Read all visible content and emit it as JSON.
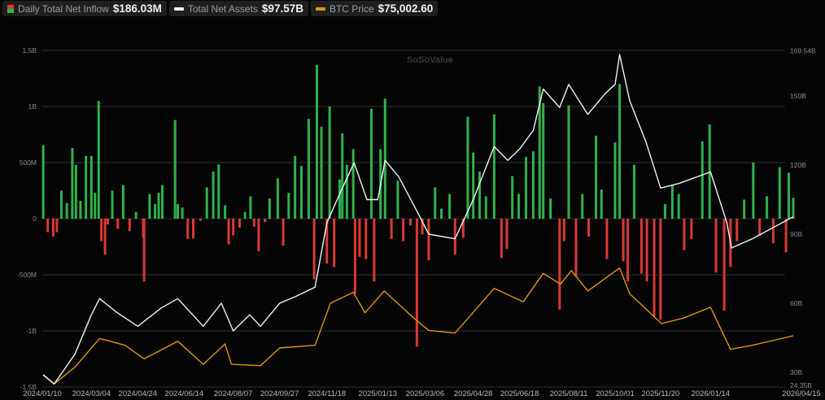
{
  "legend": {
    "flow": {
      "label": "Daily Total Net Inflow",
      "value": "$186.03M"
    },
    "assets": {
      "label": "Total Net Assets",
      "value": "$97.57B"
    },
    "btc": {
      "label": "BTC Price",
      "value": "$75,002.60"
    }
  },
  "watermark": "SoSoValue",
  "colors": {
    "inflow": "#2fb14a",
    "outflow": "#d93a32",
    "assets": "#f2f2f2",
    "btc": "#e0960c",
    "grid": "#2e2e2e",
    "background": "#050505"
  },
  "chart_data": {
    "type": "bar+line",
    "title": "",
    "grid": true,
    "legend_position": "top-left",
    "x_ticks": [
      "2024/01/10",
      "2024/03/04",
      "2024/04/24",
      "2024/06/14",
      "2024/08/07",
      "2024/09/27",
      "2024/11/18",
      "2025/01/13",
      "2025/03/06",
      "2025/04/28",
      "2025/06/18",
      "2025/08/11",
      "2025/10/01",
      "2025/11/20",
      "2026/01/14",
      "2026/04/15"
    ],
    "left_axis": {
      "ticks": [
        "1.5B",
        "1B",
        "500M",
        "0",
        "-500M",
        "-1B",
        "-1.5B"
      ],
      "range_millions": [
        -1500,
        1500
      ]
    },
    "right_axis": {
      "ticks": [
        "169.54B",
        "150B",
        "120B",
        "90B",
        "60B",
        "30B",
        "24.35B"
      ],
      "range_billions": [
        24.35,
        169.54
      ]
    },
    "series": [
      {
        "name": "Daily Total Net Inflow",
        "kind": "bar",
        "axis": "left",
        "unit": "M USD",
        "points": [
          [
            "2024/01/11",
            655
          ],
          [
            "2024/01/16",
            -120
          ],
          [
            "2024/01/22",
            -160
          ],
          [
            "2024/01/26",
            -120
          ],
          [
            "2024/01/31",
            250
          ],
          [
            "2024/02/06",
            140
          ],
          [
            "2024/02/12",
            630
          ],
          [
            "2024/02/16",
            480
          ],
          [
            "2024/02/21",
            160
          ],
          [
            "2024/02/27",
            560
          ],
          [
            "2024/03/04",
            560
          ],
          [
            "2024/03/08",
            230
          ],
          [
            "2024/03/12",
            1050
          ],
          [
            "2024/03/15",
            -200
          ],
          [
            "2024/03/19",
            -320
          ],
          [
            "2024/03/22",
            -50
          ],
          [
            "2024/03/27",
            250
          ],
          [
            "2024/04/02",
            -90
          ],
          [
            "2024/04/08",
            300
          ],
          [
            "2024/04/15",
            -110
          ],
          [
            "2024/04/22",
            60
          ],
          [
            "2024/04/30",
            -170
          ],
          [
            "2024/05/01",
            -560
          ],
          [
            "2024/05/07",
            220
          ],
          [
            "2024/05/13",
            130
          ],
          [
            "2024/05/17",
            230
          ],
          [
            "2024/05/21",
            300
          ],
          [
            "2024/06/04",
            880
          ],
          [
            "2024/06/07",
            130
          ],
          [
            "2024/06/12",
            100
          ],
          [
            "2024/06/18",
            -180
          ],
          [
            "2024/06/24",
            -175
          ],
          [
            "2024/07/02",
            -20
          ],
          [
            "2024/07/09",
            280
          ],
          [
            "2024/07/16",
            420
          ],
          [
            "2024/07/22",
            485
          ],
          [
            "2024/07/29",
            120
          ],
          [
            "2024/08/02",
            -230
          ],
          [
            "2024/08/07",
            -150
          ],
          [
            "2024/08/14",
            -80
          ],
          [
            "2024/08/20",
            60
          ],
          [
            "2024/08/26",
            200
          ],
          [
            "2024/08/30",
            -70
          ],
          [
            "2024/09/04",
            -290
          ],
          [
            "2024/09/11",
            -30
          ],
          [
            "2024/09/16",
            180
          ],
          [
            "2024/09/25",
            360
          ],
          [
            "2024/10/01",
            -240
          ],
          [
            "2024/10/07",
            230
          ],
          [
            "2024/10/14",
            560
          ],
          [
            "2024/10/21",
            470
          ],
          [
            "2024/10/29",
            890
          ],
          [
            "2024/11/04",
            -540
          ],
          [
            "2024/11/07",
            1370
          ],
          [
            "2024/11/12",
            820
          ],
          [
            "2024/11/18",
            -400
          ],
          [
            "2024/11/21",
            1000
          ],
          [
            "2024/11/26",
            -430
          ],
          [
            "2024/12/02",
            350
          ],
          [
            "2024/12/05",
            760
          ],
          [
            "2024/12/10",
            480
          ],
          [
            "2024/12/17",
            620
          ],
          [
            "2024/12/19",
            -670
          ],
          [
            "2024/12/24",
            -340
          ],
          [
            "2024/12/31",
            -360
          ],
          [
            "2025/01/06",
            980
          ],
          [
            "2025/01/09",
            -560
          ],
          [
            "2025/01/16",
            620
          ],
          [
            "2025/01/21",
            1070
          ],
          [
            "2025/01/28",
            -180
          ],
          [
            "2025/02/04",
            340
          ],
          [
            "2025/02/10",
            -200
          ],
          [
            "2025/02/18",
            -60
          ],
          [
            "2025/02/25",
            -1140
          ],
          [
            "2025/03/03",
            -140
          ],
          [
            "2025/03/10",
            -370
          ],
          [
            "2025/03/17",
            280
          ],
          [
            "2025/03/24",
            90
          ],
          [
            "2025/04/02",
            220
          ],
          [
            "2025/04/08",
            -320
          ],
          [
            "2025/04/17",
            -170
          ],
          [
            "2025/04/22",
            910
          ],
          [
            "2025/04/28",
            590
          ],
          [
            "2025/05/05",
            420
          ],
          [
            "2025/05/12",
            200
          ],
          [
            "2025/05/21",
            930
          ],
          [
            "2025/05/29",
            -350
          ],
          [
            "2025/06/04",
            -270
          ],
          [
            "2025/06/10",
            380
          ],
          [
            "2025/06/17",
            220
          ],
          [
            "2025/06/25",
            550
          ],
          [
            "2025/07/03",
            600
          ],
          [
            "2025/07/10",
            1180
          ],
          [
            "2025/07/14",
            1030
          ],
          [
            "2025/07/22",
            180
          ],
          [
            "2025/08/01",
            -810
          ],
          [
            "2025/08/06",
            -200
          ],
          [
            "2025/08/11",
            1010
          ],
          [
            "2025/08/19",
            -520
          ],
          [
            "2025/08/26",
            220
          ],
          [
            "2025/09/02",
            -160
          ],
          [
            "2025/09/10",
            740
          ],
          [
            "2025/09/16",
            260
          ],
          [
            "2025/09/22",
            -360
          ],
          [
            "2025/10/01",
            680
          ],
          [
            "2025/10/06",
            1200
          ],
          [
            "2025/10/10",
            -380
          ],
          [
            "2025/10/15",
            -560
          ],
          [
            "2025/10/22",
            480
          ],
          [
            "2025/10/30",
            -490
          ],
          [
            "2025/11/05",
            -560
          ],
          [
            "2025/11/13",
            -870
          ],
          [
            "2025/11/20",
            -900
          ],
          [
            "2025/11/25",
            130
          ],
          [
            "2025/12/03",
            300
          ],
          [
            "2025/12/10",
            220
          ],
          [
            "2025/12/16",
            -280
          ],
          [
            "2025/12/24",
            -180
          ],
          [
            "2026/01/05",
            690
          ],
          [
            "2026/01/13",
            840
          ],
          [
            "2026/01/20",
            -480
          ],
          [
            "2026/01/29",
            -820
          ],
          [
            "2026/02/05",
            -430
          ],
          [
            "2026/02/12",
            -200
          ],
          [
            "2026/02/20",
            170
          ],
          [
            "2026/03/02",
            500
          ],
          [
            "2026/03/09",
            -150
          ],
          [
            "2026/03/17",
            200
          ],
          [
            "2026/03/24",
            -220
          ],
          [
            "2026/03/31",
            460
          ],
          [
            "2026/04/07",
            -300
          ],
          [
            "2026/04/10",
            410
          ],
          [
            "2026/04/15",
            186.03
          ]
        ]
      },
      {
        "name": "Total Net Assets",
        "kind": "line",
        "axis": "right",
        "unit": "B USD",
        "points": [
          [
            "2024/01/11",
            29
          ],
          [
            "2024/01/23",
            25
          ],
          [
            "2024/02/01",
            30
          ],
          [
            "2024/02/15",
            38
          ],
          [
            "2024/03/04",
            55
          ],
          [
            "2024/03/13",
            62
          ],
          [
            "2024/04/01",
            56
          ],
          [
            "2024/04/24",
            50
          ],
          [
            "2024/05/20",
            58
          ],
          [
            "2024/06/07",
            62
          ],
          [
            "2024/07/05",
            50
          ],
          [
            "2024/07/25",
            60
          ],
          [
            "2024/08/07",
            48
          ],
          [
            "2024/08/25",
            55
          ],
          [
            "2024/09/06",
            50
          ],
          [
            "2024/09/27",
            60
          ],
          [
            "2024/10/15",
            63
          ],
          [
            "2024/11/05",
            67
          ],
          [
            "2024/11/18",
            95
          ],
          [
            "2024/12/05",
            110
          ],
          [
            "2024/12/18",
            121
          ],
          [
            "2025/01/01",
            105
          ],
          [
            "2025/01/13",
            105
          ],
          [
            "2025/01/21",
            122
          ],
          [
            "2025/02/05",
            115
          ],
          [
            "2025/02/25",
            100
          ],
          [
            "2025/03/10",
            90
          ],
          [
            "2025/04/08",
            88
          ],
          [
            "2025/04/28",
            105
          ],
          [
            "2025/05/21",
            128
          ],
          [
            "2025/06/05",
            122
          ],
          [
            "2025/06/18",
            127
          ],
          [
            "2025/07/03",
            135
          ],
          [
            "2025/07/14",
            153
          ],
          [
            "2025/08/01",
            145
          ],
          [
            "2025/08/11",
            155
          ],
          [
            "2025/09/01",
            142
          ],
          [
            "2025/09/20",
            151
          ],
          [
            "2025/10/01",
            155
          ],
          [
            "2025/10/06",
            168
          ],
          [
            "2025/10/17",
            148
          ],
          [
            "2025/11/04",
            130
          ],
          [
            "2025/11/20",
            110
          ],
          [
            "2025/12/10",
            112
          ],
          [
            "2026/01/14",
            117
          ],
          [
            "2026/02/01",
            95
          ],
          [
            "2026/02/06",
            84
          ],
          [
            "2026/03/01",
            88
          ],
          [
            "2026/03/20",
            92
          ],
          [
            "2026/04/15",
            97.57
          ]
        ]
      },
      {
        "name": "BTC Price",
        "kind": "line",
        "axis": "hidden",
        "unit": "USD",
        "points": [
          [
            "2024/01/11",
            46000
          ],
          [
            "2024/01/23",
            39500
          ],
          [
            "2024/02/15",
            52000
          ],
          [
            "2024/03/13",
            73000
          ],
          [
            "2024/04/10",
            68000
          ],
          [
            "2024/05/01",
            58000
          ],
          [
            "2024/06/07",
            71000
          ],
          [
            "2024/07/05",
            54000
          ],
          [
            "2024/07/29",
            69000
          ],
          [
            "2024/08/05",
            54000
          ],
          [
            "2024/09/06",
            53000
          ],
          [
            "2024/09/27",
            66000
          ],
          [
            "2024/11/05",
            68000
          ],
          [
            "2024/11/22",
            99000
          ],
          [
            "2024/12/17",
            107000
          ],
          [
            "2024/12/30",
            92000
          ],
          [
            "2025/01/20",
            108000
          ],
          [
            "2025/02/25",
            86000
          ],
          [
            "2025/03/10",
            79000
          ],
          [
            "2025/04/08",
            77000
          ],
          [
            "2025/05/21",
            110000
          ],
          [
            "2025/06/22",
            100000
          ],
          [
            "2025/07/14",
            121000
          ],
          [
            "2025/08/02",
            113000
          ],
          [
            "2025/08/14",
            123000
          ],
          [
            "2025/09/01",
            108000
          ],
          [
            "2025/10/06",
            125000
          ],
          [
            "2025/10/17",
            106000
          ],
          [
            "2025/11/21",
            84000
          ],
          [
            "2025/12/15",
            88000
          ],
          [
            "2026/01/14",
            96000
          ],
          [
            "2026/02/05",
            65000
          ],
          [
            "2026/03/01",
            68000
          ],
          [
            "2026/04/15",
            75002.6
          ]
        ]
      }
    ]
  }
}
